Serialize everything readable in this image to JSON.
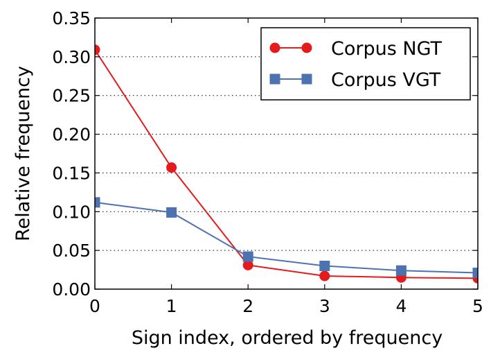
{
  "chart_data": {
    "type": "line",
    "x": [
      0,
      1,
      2,
      3,
      4,
      5
    ],
    "xlabel": "Sign index, ordered by frequency",
    "ylabel": "Relative frequency",
    "xlim": [
      0,
      5
    ],
    "ylim": [
      0,
      0.35
    ],
    "xticks": [
      0,
      1,
      2,
      3,
      4,
      5
    ],
    "yticks": [
      0.0,
      0.05,
      0.1,
      0.15,
      0.2,
      0.25,
      0.3,
      0.35
    ],
    "ytick_labels": [
      "0.00",
      "0.05",
      "0.10",
      "0.15",
      "0.20",
      "0.25",
      "0.30",
      "0.35"
    ],
    "grid": "horizontal dotted",
    "legend_position": "top-right",
    "series": [
      {
        "name": "Corpus NGT",
        "values": [
          0.309,
          0.157,
          0.031,
          0.017,
          0.015,
          0.014
        ],
        "color": "#e41a1c",
        "marker": "circle"
      },
      {
        "name": "Corpus VGT",
        "values": [
          0.112,
          0.099,
          0.042,
          0.03,
          0.024,
          0.021
        ],
        "color": "#4c72b0",
        "marker": "square"
      }
    ]
  }
}
